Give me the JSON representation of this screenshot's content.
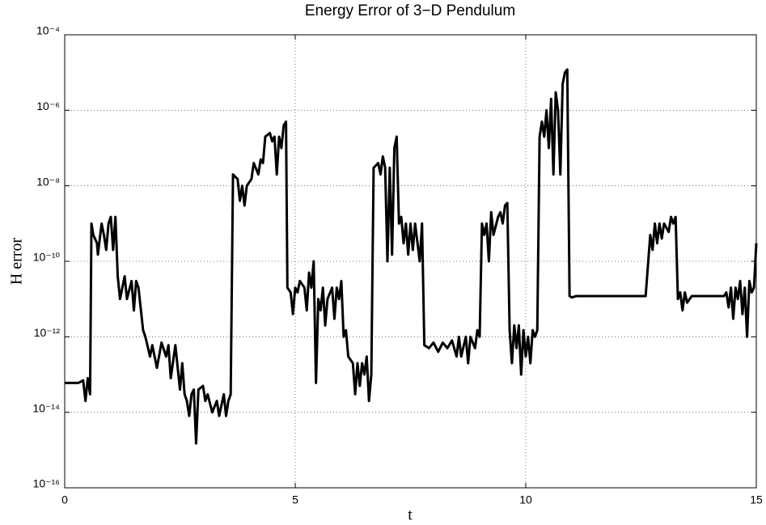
{
  "chart_data": {
    "type": "line",
    "title": "Energy Error of 3−D Pendulum",
    "xlabel": "t",
    "ylabel": "H error",
    "color": "#000000",
    "log_y": true,
    "grid": true,
    "xlim": [
      0,
      15
    ],
    "xticks": [
      0,
      5,
      10,
      15
    ],
    "ylim": [
      1e-16,
      0.0001
    ],
    "yticks": [
      {
        "value": 1e-16,
        "label": "10⁻¹⁶"
      },
      {
        "value": 1e-14,
        "label": "10⁻¹⁴"
      },
      {
        "value": 1e-12,
        "label": "10⁻¹²"
      },
      {
        "value": 1e-10,
        "label": "10⁻¹⁰"
      },
      {
        "value": 1e-08,
        "label": "10⁻⁸"
      },
      {
        "value": 1e-06,
        "label": "10⁻⁶"
      },
      {
        "value": 0.0001,
        "label": "10⁻⁴"
      }
    ],
    "x": [
      0,
      0.3,
      0.4,
      0.45,
      0.5,
      0.55,
      0.58,
      0.62,
      0.7,
      0.72,
      0.8,
      0.85,
      0.9,
      0.95,
      1.0,
      1.05,
      1.1,
      1.15,
      1.2,
      1.3,
      1.35,
      1.45,
      1.5,
      1.55,
      1.6,
      1.7,
      1.75,
      1.85,
      1.9,
      2.0,
      2.1,
      2.2,
      2.25,
      2.3,
      2.4,
      2.5,
      2.55,
      2.6,
      2.65,
      2.7,
      2.75,
      2.8,
      2.85,
      2.9,
      3.0,
      3.05,
      3.1,
      3.2,
      3.3,
      3.35,
      3.45,
      3.5,
      3.55,
      3.6,
      3.65,
      3.75,
      3.8,
      3.85,
      3.9,
      3.95,
      4.05,
      4.1,
      4.2,
      4.25,
      4.3,
      4.35,
      4.45,
      4.5,
      4.55,
      4.6,
      4.65,
      4.7,
      4.75,
      4.8,
      4.83,
      4.9,
      4.95,
      5.0,
      5.05,
      5.1,
      5.2,
      5.25,
      5.3,
      5.35,
      5.4,
      5.45,
      5.5,
      5.55,
      5.6,
      5.65,
      5.7,
      5.8,
      5.85,
      5.9,
      5.95,
      6.0,
      6.05,
      6.1,
      6.15,
      6.25,
      6.3,
      6.35,
      6.4,
      6.45,
      6.5,
      6.55,
      6.6,
      6.65,
      6.7,
      6.8,
      6.85,
      6.9,
      6.95,
      7.0,
      7.05,
      7.1,
      7.15,
      7.2,
      7.25,
      7.3,
      7.35,
      7.4,
      7.45,
      7.5,
      7.55,
      7.6,
      7.7,
      7.75,
      7.8,
      7.9,
      8.0,
      8.1,
      8.2,
      8.3,
      8.4,
      8.5,
      8.55,
      8.6,
      8.7,
      8.75,
      8.8,
      8.9,
      8.95,
      9.0,
      9.05,
      9.1,
      9.15,
      9.2,
      9.25,
      9.3,
      9.4,
      9.45,
      9.5,
      9.55,
      9.6,
      9.65,
      9.7,
      9.75,
      9.8,
      9.85,
      9.9,
      9.95,
      10.0,
      10.05,
      10.1,
      10.15,
      10.2,
      10.25,
      10.3,
      10.35,
      10.4,
      10.45,
      10.5,
      10.55,
      10.6,
      10.65,
      10.7,
      10.75,
      10.8,
      10.85,
      10.9,
      10.95,
      11.0,
      11.1,
      11.5,
      12.0,
      12.6,
      12.7,
      12.75,
      12.8,
      12.85,
      12.9,
      12.95,
      13.0,
      13.1,
      13.15,
      13.2,
      13.25,
      13.3,
      13.35,
      13.4,
      13.45,
      13.5,
      13.6,
      13.8,
      14.0,
      14.2,
      14.3,
      14.35,
      14.4,
      14.45,
      14.5,
      14.55,
      14.6,
      14.65,
      14.7,
      14.75,
      14.8,
      14.85,
      14.9,
      14.95,
      15.0
    ],
    "values": [
      6e-14,
      6e-14,
      7e-14,
      2e-14,
      8e-14,
      3e-14,
      1e-09,
      5e-10,
      3e-10,
      1.5e-10,
      1e-09,
      5e-10,
      2e-10,
      1e-09,
      1.5e-09,
      2e-10,
      1.5e-09,
      4e-11,
      1e-11,
      4e-11,
      1e-11,
      3e-11,
      5e-12,
      3e-11,
      2e-11,
      1.5e-12,
      1e-12,
      3e-13,
      6e-13,
      1.5e-13,
      7e-13,
      3e-13,
      6e-13,
      8e-14,
      6e-13,
      4e-14,
      2e-13,
      3e-14,
      2e-14,
      8e-15,
      3e-14,
      4e-14,
      1.5e-15,
      4e-14,
      5e-14,
      2e-14,
      3e-14,
      1e-14,
      2e-14,
      8e-15,
      3e-14,
      8e-15,
      2e-14,
      3e-14,
      2e-08,
      1.5e-08,
      4e-09,
      1e-08,
      3e-09,
      1e-08,
      1.5e-08,
      4e-08,
      2e-08,
      5e-08,
      4e-08,
      2e-07,
      2.5e-07,
      1.5e-07,
      2e-07,
      2e-08,
      2e-07,
      1e-07,
      4e-07,
      5e-07,
      2e-11,
      1.5e-11,
      4e-12,
      2e-11,
      1.5e-11,
      3e-11,
      2e-11,
      5e-12,
      5e-11,
      2e-11,
      1e-10,
      6e-14,
      1e-11,
      5e-12,
      2e-11,
      2e-12,
      1e-11,
      2e-11,
      3e-12,
      2e-11,
      1e-11,
      3e-11,
      1e-12,
      1.5e-12,
      3e-13,
      2e-13,
      3e-14,
      2e-13,
      5e-14,
      2e-13,
      1e-13,
      3e-13,
      2e-14,
      1e-13,
      3e-08,
      4e-08,
      2e-08,
      6e-08,
      3e-08,
      1e-10,
      3e-08,
      1.5e-10,
      1e-07,
      2e-07,
      1e-09,
      1.5e-09,
      3e-10,
      1e-09,
      1.5e-10,
      1e-09,
      2e-10,
      1e-09,
      1e-10,
      1e-09,
      6e-13,
      5e-13,
      7e-13,
      4e-13,
      7e-13,
      5e-13,
      8e-13,
      3e-13,
      1e-12,
      3e-13,
      1e-12,
      2e-13,
      1e-12,
      5e-13,
      1.5e-12,
      1e-12,
      1e-09,
      5e-10,
      1e-09,
      1e-10,
      2e-09,
      5e-10,
      1.5e-09,
      2e-09,
      1e-09,
      3e-09,
      3.5e-09,
      1.5e-12,
      2e-13,
      2e-12,
      5e-13,
      2e-12,
      1e-13,
      1.5e-12,
      3e-13,
      1e-12,
      2e-13,
      1.5e-12,
      1e-12,
      1.5e-12,
      2e-07,
      5e-07,
      2e-07,
      1e-06,
      1e-07,
      2e-06,
      2e-08,
      3e-06,
      1e-06,
      2e-08,
      5e-06,
      1e-05,
      1.2e-05,
      1.2e-11,
      1.1e-11,
      1.2e-11,
      1.2e-11,
      1.2e-11,
      1.2e-11,
      5e-10,
      2e-10,
      1e-09,
      3e-10,
      1e-09,
      4e-10,
      1e-09,
      6e-10,
      1.5e-09,
      1e-09,
      1.5e-09,
      1e-11,
      1.5e-11,
      5e-12,
      1.5e-11,
      8e-12,
      1.2e-11,
      1.2e-11,
      1.2e-11,
      1.2e-11,
      1.2e-11,
      1.5e-11,
      6e-12,
      2e-11,
      3e-12,
      2e-11,
      1e-11,
      3e-11,
      4e-12,
      2e-11,
      1e-12,
      3e-11,
      1.5e-11,
      2e-11,
      3e-10
    ]
  }
}
